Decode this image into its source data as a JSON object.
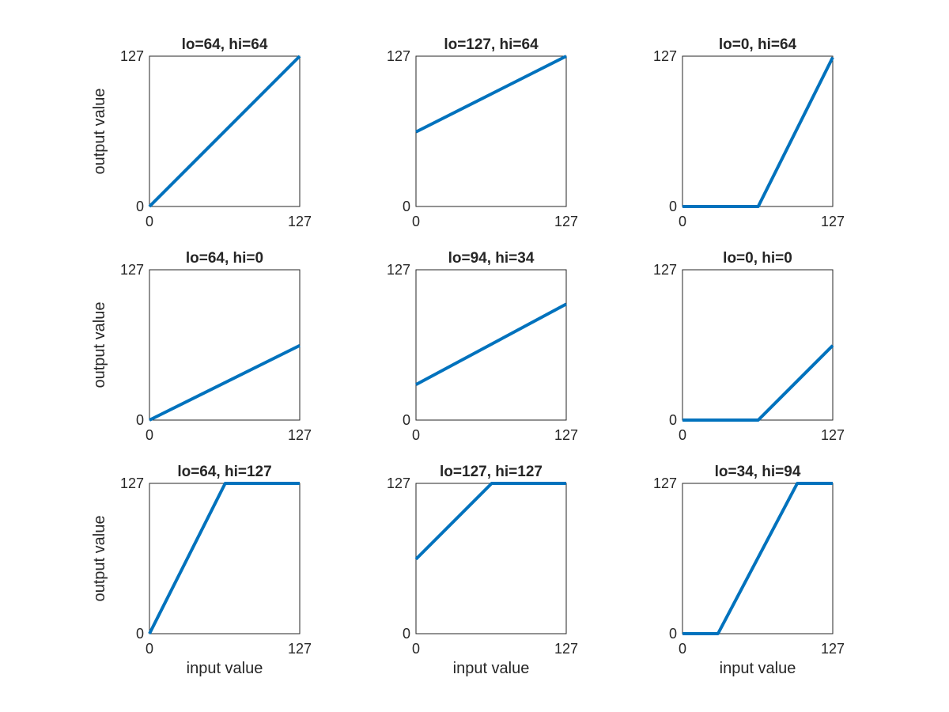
{
  "chart_data": [
    {
      "type": "line",
      "title": "lo=64, hi=64",
      "xlabel": "",
      "ylabel": "output value",
      "xlim": [
        0,
        127
      ],
      "ylim": [
        0,
        127
      ],
      "xticks": [
        "0",
        "127"
      ],
      "yticks": [
        "0",
        "127"
      ],
      "series": [
        {
          "x": [
            0,
            127
          ],
          "y": [
            0,
            127
          ]
        }
      ]
    },
    {
      "type": "line",
      "title": "lo=127, hi=64",
      "xlabel": "",
      "ylabel": "",
      "xlim": [
        0,
        127
      ],
      "ylim": [
        0,
        127
      ],
      "xticks": [
        "0",
        "127"
      ],
      "yticks": [
        "0",
        "127"
      ],
      "series": [
        {
          "x": [
            0,
            127
          ],
          "y": [
            63,
            127
          ]
        }
      ]
    },
    {
      "type": "line",
      "title": "lo=0, hi=64",
      "xlabel": "",
      "ylabel": "",
      "xlim": [
        0,
        127
      ],
      "ylim": [
        0,
        127
      ],
      "xticks": [
        "0",
        "127"
      ],
      "yticks": [
        "0",
        "127"
      ],
      "series": [
        {
          "x": [
            0,
            64,
            127
          ],
          "y": [
            0,
            0,
            126
          ]
        }
      ]
    },
    {
      "type": "line",
      "title": "lo=64, hi=0",
      "xlabel": "",
      "ylabel": "output value",
      "xlim": [
        0,
        127
      ],
      "ylim": [
        0,
        127
      ],
      "xticks": [
        "0",
        "127"
      ],
      "yticks": [
        "0",
        "127"
      ],
      "series": [
        {
          "x": [
            0,
            127
          ],
          "y": [
            0,
            63
          ]
        }
      ]
    },
    {
      "type": "line",
      "title": "lo=94, hi=34",
      "xlabel": "",
      "ylabel": "",
      "xlim": [
        0,
        127
      ],
      "ylim": [
        0,
        127
      ],
      "xticks": [
        "0",
        "127"
      ],
      "yticks": [
        "0",
        "127"
      ],
      "series": [
        {
          "x": [
            0,
            127
          ],
          "y": [
            30,
            98
          ]
        }
      ]
    },
    {
      "type": "line",
      "title": "lo=0, hi=0",
      "xlabel": "",
      "ylabel": "",
      "xlim": [
        0,
        127
      ],
      "ylim": [
        0,
        127
      ],
      "xticks": [
        "0",
        "127"
      ],
      "yticks": [
        "0",
        "127"
      ],
      "series": [
        {
          "x": [
            0,
            64,
            127
          ],
          "y": [
            0,
            0,
            63
          ]
        }
      ]
    },
    {
      "type": "line",
      "title": "lo=64, hi=127",
      "xlabel": "input value",
      "ylabel": "output value",
      "xlim": [
        0,
        127
      ],
      "ylim": [
        0,
        127
      ],
      "xticks": [
        "0",
        "127"
      ],
      "yticks": [
        "0",
        "127"
      ],
      "series": [
        {
          "x": [
            0,
            64,
            127
          ],
          "y": [
            0,
            127,
            127
          ]
        }
      ]
    },
    {
      "type": "line",
      "title": "lo=127, hi=127",
      "xlabel": "input value",
      "ylabel": "",
      "xlim": [
        0,
        127
      ],
      "ylim": [
        0,
        127
      ],
      "xticks": [
        "0",
        "127"
      ],
      "yticks": [
        "0",
        "127"
      ],
      "series": [
        {
          "x": [
            0,
            64,
            127
          ],
          "y": [
            63,
            127,
            127
          ]
        }
      ]
    },
    {
      "type": "line",
      "title": "lo=34, hi=94",
      "xlabel": "input value",
      "ylabel": "",
      "xlim": [
        0,
        127
      ],
      "ylim": [
        0,
        127
      ],
      "xticks": [
        "0",
        "127"
      ],
      "yticks": [
        "0",
        "127"
      ],
      "series": [
        {
          "x": [
            0,
            30,
            97,
            127
          ],
          "y": [
            0,
            0,
            127,
            127
          ]
        }
      ]
    }
  ],
  "line_color": "#0072BD"
}
